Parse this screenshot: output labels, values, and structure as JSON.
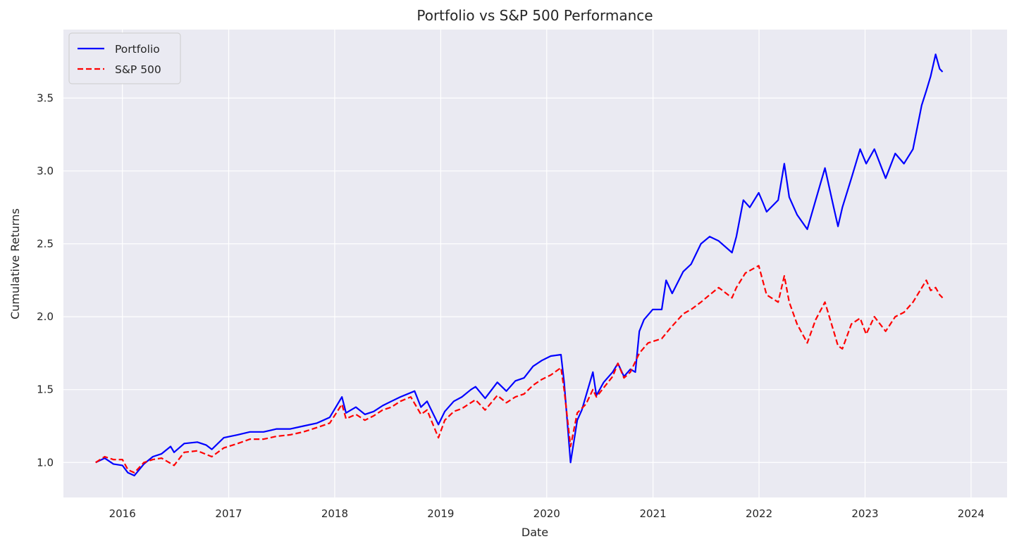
{
  "chart_data": {
    "type": "line",
    "title": "Portfolio vs S&P 500 Performance",
    "xlabel": "Date",
    "ylabel": "Cumulative Returns",
    "x_ticks": [
      "2016",
      "2017",
      "2018",
      "2019",
      "2020",
      "2021",
      "2022",
      "2023",
      "2024"
    ],
    "y_ticks": [
      "1.0",
      "1.5",
      "2.0",
      "2.5",
      "3.0",
      "3.5"
    ],
    "xlim": [
      "2015-06-12",
      "2024-05-04"
    ],
    "ylim": [
      0.76,
      3.97
    ],
    "grid": true,
    "legend_position": "upper left",
    "colors": {
      "background": "#eaeaf2",
      "grid": "#ffffff",
      "text": "#262626"
    },
    "series": [
      {
        "name": "Portfolio",
        "color": "#0000ff",
        "style": "solid",
        "x": [
          "2015-10-01",
          "2015-11-01",
          "2015-12-01",
          "2016-01-01",
          "2016-01-20",
          "2016-02-11",
          "2016-03-15",
          "2016-04-15",
          "2016-05-15",
          "2016-06-15",
          "2016-06-27",
          "2016-08-01",
          "2016-09-15",
          "2016-10-15",
          "2016-11-04",
          "2016-12-15",
          "2017-02-01",
          "2017-03-15",
          "2017-05-01",
          "2017-06-15",
          "2017-08-01",
          "2017-09-15",
          "2017-11-01",
          "2017-12-15",
          "2018-01-26",
          "2018-02-09",
          "2018-03-15",
          "2018-04-15",
          "2018-05-15",
          "2018-06-15",
          "2018-07-15",
          "2018-08-15",
          "2018-10-03",
          "2018-10-25",
          "2018-11-15",
          "2018-12-24",
          "2019-01-15",
          "2019-02-15",
          "2019-03-15",
          "2019-04-15",
          "2019-05-01",
          "2019-06-03",
          "2019-07-15",
          "2019-08-15",
          "2019-09-15",
          "2019-10-15",
          "2019-11-15",
          "2019-12-15",
          "2020-01-15",
          "2020-02-19",
          "2020-03-01",
          "2020-03-23",
          "2020-04-15",
          "2020-05-01",
          "2020-06-08",
          "2020-06-20",
          "2020-07-15",
          "2020-08-15",
          "2020-09-02",
          "2020-09-23",
          "2020-10-15",
          "2020-11-01",
          "2020-11-15",
          "2020-12-01",
          "2020-12-31",
          "2021-01-31",
          "2021-02-15",
          "2021-03-08",
          "2021-04-15",
          "2021-05-12",
          "2021-06-15",
          "2021-07-15",
          "2021-08-15",
          "2021-09-30",
          "2021-10-15",
          "2021-11-08",
          "2021-11-30",
          "2021-12-31",
          "2022-01-15",
          "2022-01-27",
          "2022-03-08",
          "2022-03-29",
          "2022-04-15",
          "2022-05-12",
          "2022-06-16",
          "2022-07-15",
          "2022-08-16",
          "2022-09-15",
          "2022-09-30",
          "2022-10-15",
          "2022-11-15",
          "2022-12-15",
          "2023-01-05",
          "2023-02-02",
          "2023-03-13",
          "2023-04-15",
          "2023-05-15",
          "2023-06-15",
          "2023-07-15",
          "2023-07-31",
          "2023-08-15",
          "2023-09-01",
          "2023-09-15",
          "2023-09-25"
        ],
        "values": [
          1.0,
          1.03,
          0.99,
          0.98,
          0.93,
          0.91,
          0.99,
          1.04,
          1.06,
          1.11,
          1.07,
          1.13,
          1.14,
          1.12,
          1.09,
          1.17,
          1.19,
          1.21,
          1.21,
          1.23,
          1.23,
          1.25,
          1.27,
          1.31,
          1.45,
          1.34,
          1.38,
          1.33,
          1.35,
          1.39,
          1.42,
          1.45,
          1.49,
          1.38,
          1.42,
          1.26,
          1.35,
          1.42,
          1.45,
          1.5,
          1.52,
          1.44,
          1.55,
          1.49,
          1.56,
          1.58,
          1.66,
          1.7,
          1.73,
          1.74,
          1.55,
          1.0,
          1.29,
          1.36,
          1.62,
          1.46,
          1.55,
          1.62,
          1.68,
          1.59,
          1.64,
          1.62,
          1.9,
          1.98,
          2.05,
          2.05,
          2.25,
          2.16,
          2.31,
          2.36,
          2.5,
          2.55,
          2.52,
          2.44,
          2.55,
          2.8,
          2.75,
          2.85,
          2.78,
          2.72,
          2.8,
          3.05,
          2.82,
          2.7,
          2.6,
          2.8,
          3.02,
          2.75,
          2.62,
          2.75,
          2.95,
          3.15,
          3.05,
          3.15,
          2.95,
          3.12,
          3.05,
          3.15,
          3.45,
          3.55,
          3.65,
          3.8,
          3.7,
          3.68
        ]
      },
      {
        "name": "S&P 500",
        "color": "#ff0000",
        "style": "dashed",
        "x": [
          "2015-10-01",
          "2015-11-01",
          "2015-12-01",
          "2016-01-01",
          "2016-01-20",
          "2016-02-11",
          "2016-03-15",
          "2016-04-15",
          "2016-05-15",
          "2016-06-27",
          "2016-08-01",
          "2016-09-15",
          "2016-11-04",
          "2016-12-15",
          "2017-02-01",
          "2017-03-15",
          "2017-05-01",
          "2017-06-15",
          "2017-08-01",
          "2017-09-15",
          "2017-11-01",
          "2017-12-15",
          "2018-01-26",
          "2018-02-09",
          "2018-03-15",
          "2018-04-15",
          "2018-05-15",
          "2018-06-15",
          "2018-07-15",
          "2018-08-15",
          "2018-09-20",
          "2018-10-25",
          "2018-11-15",
          "2018-12-24",
          "2019-01-15",
          "2019-02-15",
          "2019-03-15",
          "2019-04-15",
          "2019-05-01",
          "2019-06-03",
          "2019-07-15",
          "2019-08-15",
          "2019-09-15",
          "2019-10-15",
          "2019-11-15",
          "2019-12-15",
          "2020-01-15",
          "2020-02-19",
          "2020-03-01",
          "2020-03-23",
          "2020-04-15",
          "2020-05-15",
          "2020-06-08",
          "2020-06-20",
          "2020-08-15",
          "2020-09-02",
          "2020-09-23",
          "2020-10-15",
          "2020-11-15",
          "2020-12-15",
          "2021-01-31",
          "2021-03-01",
          "2021-04-15",
          "2021-05-12",
          "2021-06-15",
          "2021-07-15",
          "2021-08-15",
          "2021-09-30",
          "2021-10-15",
          "2021-11-15",
          "2021-12-31",
          "2022-01-27",
          "2022-03-08",
          "2022-03-29",
          "2022-04-15",
          "2022-05-12",
          "2022-06-16",
          "2022-07-15",
          "2022-08-16",
          "2022-09-15",
          "2022-09-30",
          "2022-10-15",
          "2022-11-15",
          "2022-12-15",
          "2023-01-05",
          "2023-02-02",
          "2023-03-13",
          "2023-04-15",
          "2023-05-15",
          "2023-06-15",
          "2023-07-31",
          "2023-08-15",
          "2023-09-01",
          "2023-09-15",
          "2023-09-25"
        ],
        "values": [
          1.0,
          1.04,
          1.02,
          1.02,
          0.95,
          0.93,
          1.0,
          1.02,
          1.03,
          0.98,
          1.07,
          1.08,
          1.04,
          1.1,
          1.13,
          1.16,
          1.16,
          1.18,
          1.19,
          1.21,
          1.24,
          1.27,
          1.4,
          1.3,
          1.33,
          1.29,
          1.32,
          1.36,
          1.38,
          1.42,
          1.45,
          1.33,
          1.36,
          1.17,
          1.29,
          1.35,
          1.37,
          1.41,
          1.43,
          1.36,
          1.46,
          1.41,
          1.45,
          1.47,
          1.53,
          1.57,
          1.6,
          1.65,
          1.5,
          1.11,
          1.34,
          1.4,
          1.5,
          1.45,
          1.59,
          1.68,
          1.58,
          1.62,
          1.75,
          1.82,
          1.85,
          1.92,
          2.02,
          2.05,
          2.1,
          2.15,
          2.2,
          2.13,
          2.2,
          2.3,
          2.35,
          2.15,
          2.1,
          2.28,
          2.1,
          1.95,
          1.82,
          1.98,
          2.1,
          1.9,
          1.8,
          1.78,
          1.95,
          1.99,
          1.88,
          2.0,
          1.9,
          2.0,
          2.03,
          2.1,
          2.25,
          2.18,
          2.2,
          2.15,
          2.13
        ]
      }
    ]
  }
}
